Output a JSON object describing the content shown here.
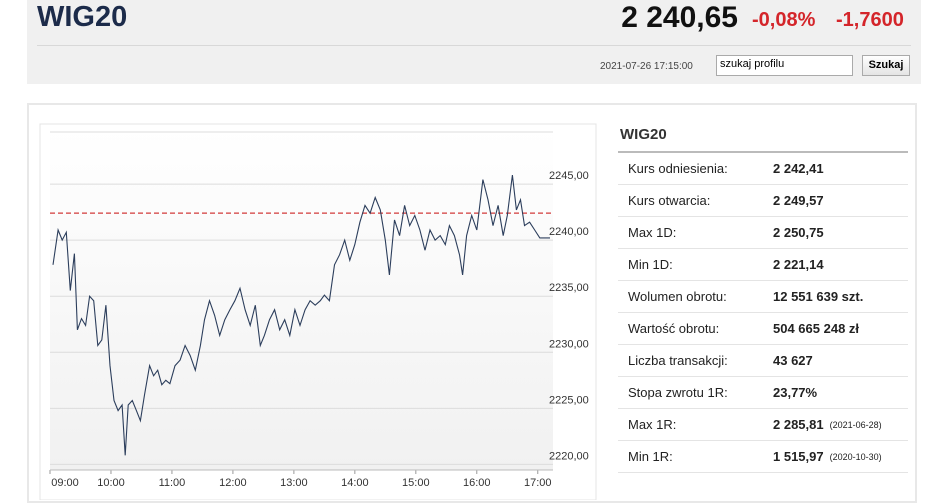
{
  "header": {
    "title": "WIG20",
    "price": "2 240,65",
    "change_pct": "-0,08%",
    "change_abs": "-1,7600",
    "timestamp": "2021-07-26 17:15:00",
    "search_placeholder": "szukaj profilu",
    "search_button": "Szukaj"
  },
  "chart_data": {
    "type": "line",
    "x": [
      "09:03",
      "09:08",
      "09:12",
      "09:16",
      "09:20",
      "09:24",
      "09:27",
      "09:31",
      "09:35",
      "09:39",
      "09:43",
      "09:47",
      "09:51",
      "09:55",
      "09:59",
      "10:03",
      "10:07",
      "10:11",
      "10:14",
      "10:17",
      "10:21",
      "10:25",
      "10:29",
      "10:33",
      "10:38",
      "10:42",
      "10:46",
      "10:50",
      "10:54",
      "10:58",
      "11:03",
      "11:08",
      "11:13",
      "11:18",
      "11:23",
      "11:28",
      "11:32",
      "11:37",
      "11:42",
      "11:47",
      "11:52",
      "11:57",
      "12:02",
      "12:07",
      "12:12",
      "12:17",
      "12:22",
      "12:27",
      "12:31",
      "12:36",
      "12:41",
      "12:46",
      "12:51",
      "12:56",
      "13:01",
      "13:06",
      "13:11",
      "13:16",
      "13:21",
      "13:26",
      "13:30",
      "13:35",
      "13:40",
      "13:45",
      "13:50",
      "13:55",
      "14:00",
      "14:05",
      "14:10",
      "14:15",
      "14:20",
      "14:25",
      "14:30",
      "14:34",
      "14:39",
      "14:44",
      "14:49",
      "14:54",
      "14:59",
      "15:04",
      "15:09",
      "15:14",
      "15:19",
      "15:24",
      "15:29",
      "15:33",
      "15:38",
      "15:43",
      "15:46",
      "15:50",
      "15:55",
      "16:00",
      "16:06",
      "16:11",
      "16:16",
      "16:21",
      "16:26",
      "16:30",
      "16:35",
      "16:39",
      "16:43",
      "16:47",
      "16:52",
      "16:57",
      "17:02",
      "17:12"
    ],
    "series": [
      {
        "color": "#2c3e5c",
        "values": [
          2237.8,
          2240.9,
          2240.0,
          2240.7,
          2235.5,
          2238.8,
          2232.0,
          2233.0,
          2232.4,
          2235.0,
          2234.6,
          2230.6,
          2231.1,
          2234.2,
          2228.8,
          2225.7,
          2224.8,
          2225.3,
          2220.8,
          2225.3,
          2225.7,
          2224.8,
          2223.9,
          2226.2,
          2228.8,
          2227.9,
          2228.4,
          2227.1,
          2227.5,
          2227.2,
          2228.8,
          2229.3,
          2230.6,
          2229.7,
          2228.4,
          2230.6,
          2232.9,
          2234.6,
          2233.3,
          2231.5,
          2232.9,
          2233.8,
          2234.6,
          2235.7,
          2233.8,
          2232.4,
          2234.2,
          2230.6,
          2231.5,
          2232.9,
          2233.8,
          2232.0,
          2232.9,
          2231.5,
          2233.8,
          2232.4,
          2233.8,
          2234.6,
          2234.2,
          2234.6,
          2235.1,
          2234.6,
          2237.8,
          2238.7,
          2240.0,
          2238.2,
          2239.6,
          2241.6,
          2243.1,
          2242.4,
          2243.8,
          2242.7,
          2240.0,
          2236.9,
          2241.8,
          2240.4,
          2243.1,
          2241.3,
          2242.2,
          2240.9,
          2239.1,
          2240.9,
          2240.0,
          2240.4,
          2239.6,
          2241.3,
          2240.4,
          2238.7,
          2236.9,
          2240.4,
          2242.2,
          2240.9,
          2245.4,
          2243.6,
          2241.3,
          2243.1,
          2240.4,
          2242.2,
          2245.8,
          2242.7,
          2243.6,
          2241.3,
          2241.6,
          2240.9,
          2240.2,
          2240.2
        ]
      }
    ],
    "reference": 2242.41,
    "reference_color": "#d23a3a",
    "xlim": [
      "09:00",
      "17:15"
    ],
    "xticks": [
      "09:00",
      "10:00",
      "11:00",
      "12:00",
      "13:00",
      "14:00",
      "15:00",
      "16:00",
      "17:00"
    ],
    "ylim": [
      2219.5,
      2250
    ],
    "yticks": [
      {
        "value": 2220,
        "label": "2220,00"
      },
      {
        "value": 2225,
        "label": "2225,00"
      },
      {
        "value": 2230,
        "label": "2230,00"
      },
      {
        "value": 2235,
        "label": "2235,00"
      },
      {
        "value": 2240,
        "label": "2240,00"
      },
      {
        "value": 2245,
        "label": "2245,00"
      }
    ],
    "grid": true
  },
  "table": {
    "title": "WIG20",
    "rows": [
      [
        "Kurs odniesienia:",
        "2 242,41"
      ],
      [
        "Kurs otwarcia:",
        "2 249,57"
      ],
      [
        "Max 1D:",
        "2 250,75"
      ],
      [
        "Min 1D:",
        "2 221,14"
      ],
      [
        "Wolumen obrotu:",
        "12 551 639 szt."
      ],
      [
        "Wartość obrotu:",
        "504 665 248 zł"
      ],
      [
        "Liczba transakcji:",
        "43 627"
      ],
      [
        "Stopa zwrotu 1R:",
        "23,77%"
      ],
      [
        "Max 1R:",
        "2 285,81",
        "(2021-06-28)"
      ],
      [
        "Min 1R:",
        "1 515,97",
        "(2020-10-30)"
      ]
    ]
  }
}
